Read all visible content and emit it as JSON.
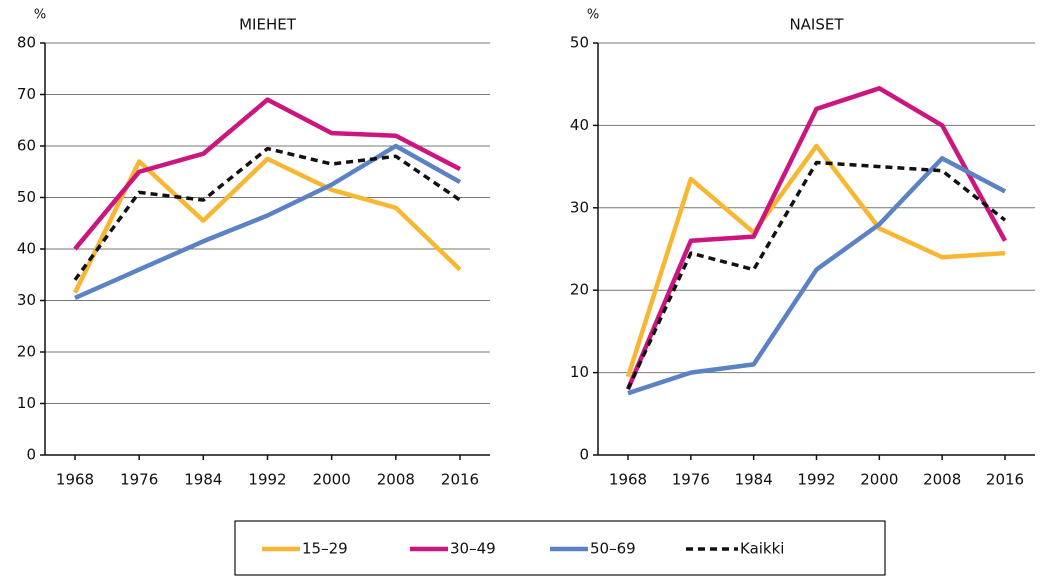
{
  "chart_data": [
    {
      "type": "line",
      "title": "MIEHET",
      "y_label": "%",
      "categories": [
        "1968",
        "1976",
        "1984",
        "1992",
        "2000",
        "2008",
        "2016"
      ],
      "ylim": [
        0,
        80
      ],
      "yticks": [
        0,
        10,
        20,
        30,
        40,
        50,
        60,
        70,
        80
      ],
      "grid": true,
      "series": [
        {
          "name": "15–29",
          "color": "#f7b733",
          "values": [
            31.5,
            57,
            45.5,
            57.5,
            51.5,
            48,
            36
          ]
        },
        {
          "name": "30–49",
          "color": "#cc157f",
          "values": [
            40,
            55,
            58.5,
            69,
            62.5,
            62,
            55.5
          ]
        },
        {
          "name": "50–69",
          "color": "#5b82c4",
          "values": [
            30.5,
            36,
            41.5,
            46.5,
            52.5,
            60,
            53
          ]
        },
        {
          "name": "Kaikki",
          "color": "#111111",
          "dashed": true,
          "values": [
            34,
            51,
            49.5,
            59.5,
            56.5,
            58,
            49.5
          ]
        }
      ]
    },
    {
      "type": "line",
      "title": "NAISET",
      "y_label": "%",
      "categories": [
        "1968",
        "1976",
        "1984",
        "1992",
        "2000",
        "2008",
        "2016"
      ],
      "ylim": [
        0,
        50
      ],
      "yticks": [
        0,
        10,
        20,
        30,
        40,
        50
      ],
      "grid": true,
      "series": [
        {
          "name": "15–29",
          "color": "#f7b733",
          "values": [
            9.5,
            33.5,
            27,
            37.5,
            27.5,
            24,
            24.5
          ]
        },
        {
          "name": "30–49",
          "color": "#cc157f",
          "values": [
            8,
            26,
            26.5,
            42,
            44.5,
            40,
            26
          ]
        },
        {
          "name": "50–69",
          "color": "#5b82c4",
          "values": [
            7.5,
            10,
            11,
            22.5,
            28,
            36,
            32
          ]
        },
        {
          "name": "Kaikki",
          "color": "#111111",
          "dashed": true,
          "values": [
            8,
            24.5,
            22.5,
            35.5,
            35,
            34.5,
            28.5
          ]
        }
      ]
    }
  ]
}
